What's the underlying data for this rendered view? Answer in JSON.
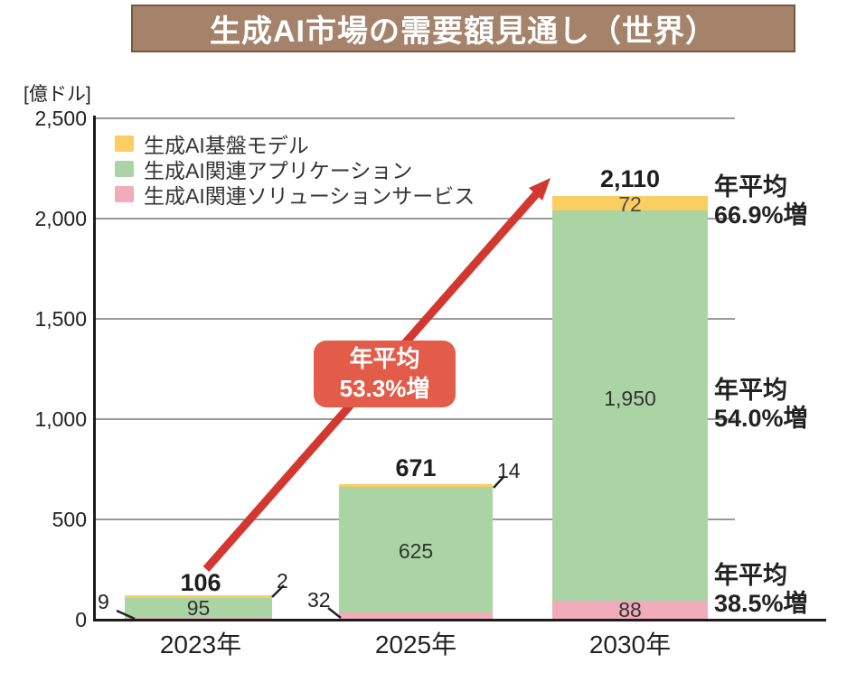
{
  "title": "生成AI市場の需要額見通し（世界）",
  "y_axis": {
    "unit_label": "[億ドル]",
    "ticks": [
      "2,500",
      "2,000",
      "1,500",
      "1,000",
      "500",
      "0"
    ]
  },
  "legend": {
    "items": [
      {
        "label": "生成AI基盤モデル",
        "color": "#fbce62"
      },
      {
        "label": "生成AI関連アプリケーション",
        "color": "#abd4a4"
      },
      {
        "label": "生成AI関連ソリューションサービス",
        "color": "#f0acba"
      }
    ]
  },
  "bars": [
    {
      "category": "2023年",
      "total": "106",
      "base_model": "2",
      "application": "95",
      "solution": "9"
    },
    {
      "category": "2025年",
      "total": "671",
      "base_model": "14",
      "application": "625",
      "solution": "32"
    },
    {
      "category": "2030年",
      "total": "2,110",
      "base_model": "72",
      "application": "1,950",
      "solution": "88"
    }
  ],
  "annotations": {
    "box": {
      "line1": "年平均",
      "line2": "53.3%増"
    },
    "right": [
      {
        "line1": "年平均",
        "line2": "66.9%増"
      },
      {
        "line1": "年平均",
        "line2": "54.0%増"
      },
      {
        "line1": "年平均",
        "line2": "38.5%増"
      }
    ]
  },
  "chart_data": {
    "type": "bar",
    "stacked": true,
    "title": "生成AI市場の需要額見通し（世界）",
    "ylabel": "億ドル",
    "ylim": [
      0,
      2500
    ],
    "grid": true,
    "categories": [
      "2023年",
      "2025年",
      "2030年"
    ],
    "series": [
      {
        "name": "生成AI基盤モデル",
        "color": "#fbce62",
        "values": [
          2,
          14,
          72
        ]
      },
      {
        "name": "生成AI関連アプリケーション",
        "color": "#abd4a4",
        "values": [
          95,
          625,
          1950
        ]
      },
      {
        "name": "生成AI関連ソリューションサービス",
        "color": "#f0acba",
        "values": [
          9,
          32,
          88
        ]
      }
    ],
    "totals": [
      106,
      671,
      2110
    ],
    "annotations": [
      "年平均53.3%増（総額 2023年→2025年の矢印）",
      "年平均66.9%増（生成AI基盤モデル）",
      "年平均54.0%増（生成AI関連アプリケーション）",
      "年平均38.5%増（生成AI関連ソリューションサービス）"
    ],
    "legend_position": "upper-left"
  }
}
